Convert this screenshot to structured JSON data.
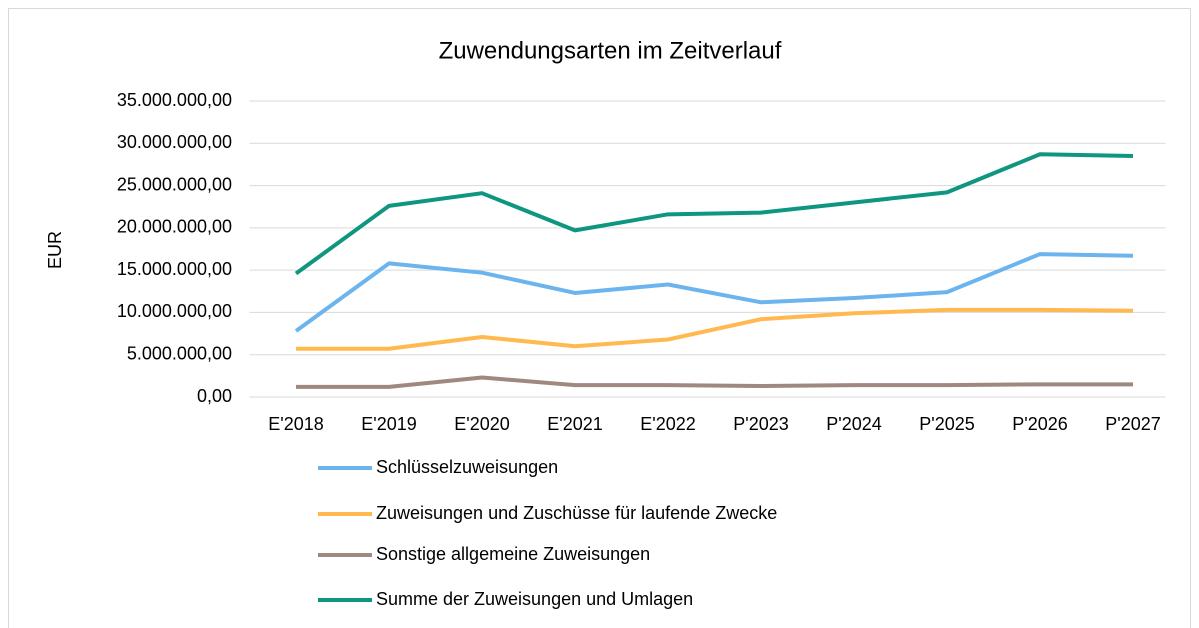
{
  "chart_data": {
    "type": "line",
    "title": "Zuwendungsarten im Zeitverlauf",
    "y_label": "EUR",
    "categories": [
      "E'2018",
      "E'2019",
      "E'2020",
      "E'2021",
      "E'2022",
      "P'2023",
      "P'2024",
      "P'2025",
      "P'2026",
      "P'2027"
    ],
    "series": [
      {
        "name": "Schlüsselzuweisungen",
        "color": "#6cb4ee",
        "values": [
          7800000,
          15800000,
          14700000,
          12300000,
          13300000,
          11200000,
          11700000,
          12400000,
          16900000,
          16700000
        ]
      },
      {
        "name": "Zuweisungen und Zuschüsse für laufende Zwecke",
        "color": "#ffb94f",
        "values": [
          5700000,
          5700000,
          7100000,
          6000000,
          6800000,
          9200000,
          9900000,
          10300000,
          10300000,
          10200000
        ]
      },
      {
        "name": "Sonstige allgemeine Zuweisungen",
        "color": "#9e8880",
        "values": [
          1200000,
          1200000,
          2300000,
          1400000,
          1400000,
          1300000,
          1400000,
          1400000,
          1500000,
          1500000
        ]
      },
      {
        "name": "Summe der Zuweisungen und Umlagen",
        "color": "#0e9680",
        "values": [
          14600000,
          22600000,
          24100000,
          19700000,
          21600000,
          21800000,
          23000000,
          24200000,
          28700000,
          28500000
        ]
      }
    ],
    "ylim": [
      0,
      35000000
    ],
    "yticks": [
      {
        "value": 0,
        "label": "0,00"
      },
      {
        "value": 5000000,
        "label": "5.000.000,00"
      },
      {
        "value": 10000000,
        "label": "10.000.000,00"
      },
      {
        "value": 15000000,
        "label": "15.000.000,00"
      },
      {
        "value": 20000000,
        "label": "20.000.000,00"
      },
      {
        "value": 25000000,
        "label": "25.000.000,00"
      },
      {
        "value": 30000000,
        "label": "30.000.000,00"
      },
      {
        "value": 35000000,
        "label": "35.000.000,00"
      }
    ],
    "grid": true,
    "legend": "bottom"
  }
}
